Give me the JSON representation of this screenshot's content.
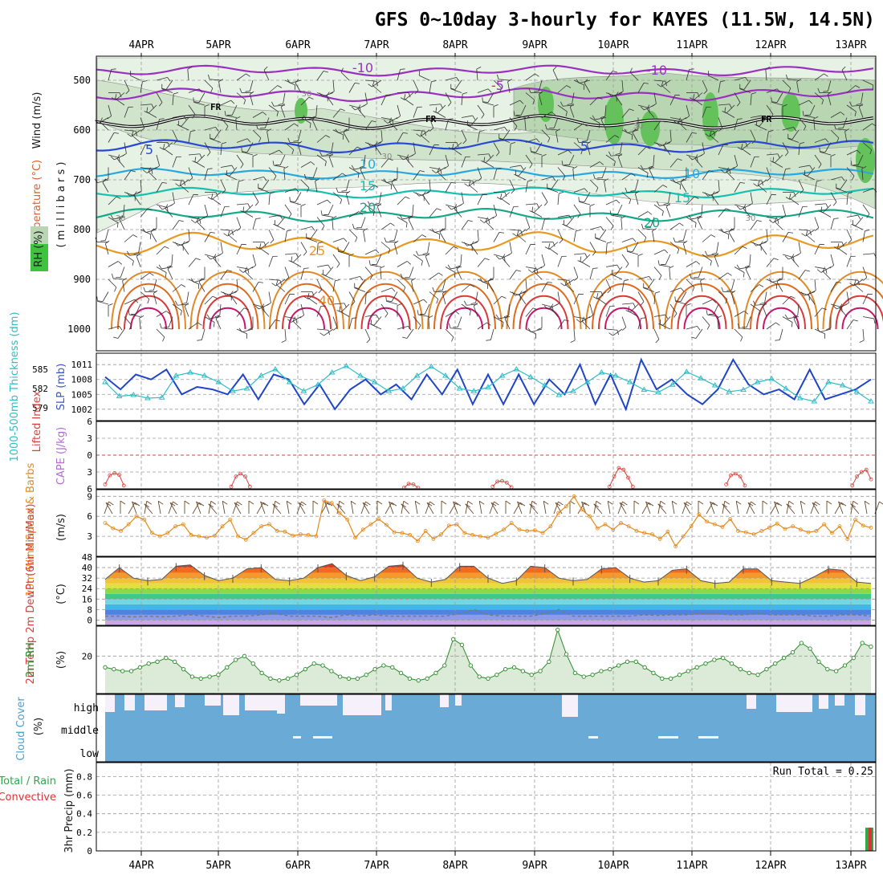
{
  "title": "GFS 0~10day 3-hourly for KAYES (11.5W, 14.5N)",
  "colors": {
    "grid": "#9a9a9a",
    "rh_light": "#e6f2e3",
    "rh_mid": "#b9d6b2",
    "rh_green": "#63c35a",
    "cloud": "#6aaad6",
    "cloud_gap": "#f5f0fa",
    "slp": "#1f44c8",
    "thickness": "#2fbcc7",
    "lifted_index": "#d8423c",
    "wind_speed": "#e58a19",
    "barbs": "#6b4a2a",
    "rh2m_line": "#2a8b2a",
    "rh2m_fill": "#dcebd8",
    "dewpt": "#7a7a7a",
    "precip_total": "#2ea84a",
    "precip_conv": "#e23030",
    "temp_bands": [
      "#c9a6e6",
      "#8e9bec",
      "#4e83e0",
      "#41b7e8",
      "#6fd8e0",
      "#40c88a",
      "#8cd84a",
      "#e0e040",
      "#f2c238",
      "#f59a2a",
      "#f06a20",
      "#de3b17",
      "#9a4a30",
      "#6b3a2a"
    ]
  },
  "x_axis": {
    "ticks": [
      "4APR",
      "5APR",
      "6APR",
      "7APR",
      "8APR",
      "9APR",
      "10APR",
      "11APR",
      "12APR",
      "13APR"
    ]
  },
  "panels": {
    "upper_air": {
      "ylabel_rh": "RH (%)",
      "ylabel_temp": "Temperature (°C)",
      "ylabel_wind": "Wind (m/s)",
      "ylabel_units": "( m i l l i b a r s )",
      "y_ticks": [
        "500",
        "600",
        "700",
        "800",
        "900",
        "1000"
      ],
      "fr_label": "FR",
      "contour_labels": [
        "-10",
        "-10",
        "-5",
        "-5",
        "-5",
        "-5",
        "5",
        "5",
        "10",
        "10",
        "15",
        "15",
        "20",
        "20",
        "25",
        "40",
        "30",
        "30",
        "30",
        "30",
        "30"
      ]
    },
    "slp_thickness": {
      "ylabel_left": "1000-500mb Thickness (dm)",
      "ylabel_right": "SLP (mb)",
      "left_ticks": [
        "585",
        "582",
        "579"
      ],
      "right_ticks": [
        "1011",
        "1008",
        "1005",
        "1002"
      ]
    },
    "stability": {
      "ylabel_li": "Lifted Index",
      "ylabel_cape": "CAPE (J/kg)",
      "ticks": [
        "6",
        "3",
        "0",
        "3",
        "6"
      ]
    },
    "wind10m": {
      "ylabel": "10m Wind Speed & Barbs",
      "ylabel_units": "(m/s)",
      "ticks": [
        "9",
        "6",
        "3"
      ]
    },
    "temp2m": {
      "ylabel": "2m Temp 2m DewPt (6hr Min/Max)",
      "ylabel_units": "(°C)",
      "ticks": [
        "48",
        "40",
        "32",
        "24",
        "16",
        "8",
        "0"
      ]
    },
    "rh2m": {
      "ylabel": "2m RH",
      "ylabel_units": "(%)",
      "ticks": [
        "20"
      ]
    },
    "cloud": {
      "ylabel": "Cloud Cover",
      "ylabel_units": "(%)",
      "levels": [
        "high",
        "middle",
        "low"
      ]
    },
    "precip": {
      "ylabel_total": "Total / Rain",
      "ylabel_conv": "Convective",
      "ylabel": "3hr Precip (mm)",
      "ticks": [
        "0.8",
        "0.6",
        "0.4",
        "0.2",
        "0"
      ],
      "top_tick": "0.8",
      "run_total": "Run Total = 0.25"
    }
  },
  "chart_data": [
    {
      "type": "line",
      "title": "SLP (mb)",
      "x_start": "3APR 12Z",
      "x_step_hours": 12,
      "series": [
        {
          "name": "SLP (mb)",
          "values": [
            1008.5,
            1006,
            1009,
            1008,
            1010,
            1005,
            1006.5,
            1006,
            1005,
            1009,
            1004,
            1009,
            1008,
            1003,
            1007,
            1002,
            1006,
            1008,
            1005,
            1007,
            1004,
            1009,
            1005,
            1010,
            1003,
            1009,
            1003,
            1009,
            1003,
            1008,
            1005,
            1011,
            1003,
            1009,
            1002,
            1012,
            1006,
            1008,
            1005,
            1003,
            1006,
            1012,
            1007,
            1005,
            1006,
            1004,
            1010,
            1004,
            1005,
            1006,
            1008
          ]
        }
      ],
      "ylim": [
        1001,
        1012
      ]
    },
    {
      "type": "line",
      "title": "1000-500mb Thickness (dm)",
      "series": [
        {
          "name": "1000-500mb Thickness (dm)",
          "values": [
            583,
            580.8,
            581,
            580.5,
            580.6,
            584,
            584.5,
            584,
            583,
            581.6,
            582,
            584,
            585,
            583,
            581.6,
            582.6,
            584.5,
            585.5,
            584,
            583,
            581.6,
            582,
            584,
            585.4,
            584,
            582,
            581.6,
            582.2,
            584,
            585,
            583.8,
            582.5,
            581,
            581.6,
            583,
            584.5,
            584,
            583,
            581.8,
            581.4,
            582.6,
            584.6,
            583.6,
            582.5,
            581.5,
            581.8,
            583,
            583.5,
            582,
            580.5,
            580,
            583,
            582.5,
            581.5,
            580
          ]
        }
      ],
      "ylim": [
        578,
        586.5
      ]
    },
    {
      "type": "line",
      "title": "Lifted Index",
      "series": [
        {
          "name": "Lifted Index",
          "values": [
            5.2,
            3.6,
            3.2,
            3.5,
            5.4,
            null,
            null,
            null,
            null,
            null,
            null,
            null,
            null,
            null,
            null,
            null,
            null,
            null,
            null,
            null,
            null,
            null,
            null,
            null,
            null,
            null,
            null,
            5.6,
            3.8,
            3.3,
            3.8,
            5.6,
            null,
            null,
            null,
            null,
            null,
            null,
            null,
            null,
            null,
            null,
            null,
            null,
            null,
            null,
            null,
            null,
            null,
            null,
            null,
            null,
            null,
            null,
            null,
            null,
            null,
            null,
            null,
            null,
            null,
            null,
            null,
            null,
            5.8,
            5.1,
            5.2,
            5.8,
            null,
            null,
            null,
            null,
            null,
            null,
            null,
            null,
            null,
            null,
            null,
            null,
            null,
            null,
            null,
            5.6,
            4.7,
            4.6,
            4.9,
            5.7,
            null,
            null,
            null,
            null,
            null,
            null,
            null,
            null,
            null,
            null,
            null,
            null,
            null,
            null,
            null,
            null,
            null,
            null,
            null,
            null,
            5.6,
            3.8,
            2.3,
            2.6,
            4.0,
            5.6,
            null,
            null,
            null,
            null,
            null,
            null,
            null,
            null,
            null,
            null,
            null,
            null,
            null,
            null,
            null,
            null,
            null,
            null,
            null,
            5.2,
            3.6,
            3.3,
            3.8,
            5.4,
            null,
            null,
            null,
            null,
            null,
            null,
            null,
            null,
            null,
            null,
            null,
            null,
            null,
            null,
            null,
            null,
            null,
            null,
            null,
            null,
            null,
            null,
            5.4,
            3.8,
            3.0,
            2.6,
            4.3
          ]
        }
      ],
      "ylim": [
        -6,
        6
      ]
    },
    {
      "type": "line",
      "title": "10m Wind Speed (m/s)",
      "series": [
        {
          "name": "10m Wind Speed",
          "values": [
            5,
            4.2,
            3.8,
            4.8,
            6,
            5.5,
            3.5,
            3,
            3.5,
            4.5,
            4.8,
            3.2,
            3,
            2.8,
            3.1,
            4.5,
            5.5,
            3,
            2.5,
            3.5,
            4.5,
            4.8,
            3.8,
            3.7,
            3.1,
            3.3,
            3.2,
            3,
            8.4,
            8,
            6.5,
            5.5,
            2.8,
            4,
            4.8,
            5.6,
            4.7,
            3.6,
            3.5,
            3.2,
            2.3,
            3.8,
            2.6,
            3.3,
            4.6,
            4.8,
            3.5,
            3.2,
            3,
            2.8,
            3.4,
            4,
            5,
            4,
            3.8,
            3.9,
            3.5,
            4.5,
            6.5,
            7.5,
            9,
            7,
            6,
            4.2,
            4.8,
            4,
            5,
            4.5,
            3.8,
            3.5,
            3.3,
            2.6,
            3.7,
            1.5,
            3,
            4.5,
            6.3,
            5.2,
            4.8,
            4.4,
            5.6,
            3.8,
            3.6,
            3.3,
            3.8,
            4.3,
            4.9,
            4.1,
            4.5,
            4,
            3.6,
            3.8,
            4.8,
            3.5,
            4.5,
            2.6,
            5.5,
            4.6,
            4.3
          ]
        }
      ],
      "ylim": [
        0,
        10
      ]
    },
    {
      "type": "area",
      "title": "2m Temp (°C)",
      "series": [
        {
          "name": "2m Temp",
          "values": [
            31,
            40,
            32,
            30,
            31,
            41,
            42,
            34,
            30,
            32,
            39,
            40,
            31,
            30,
            32,
            40,
            43,
            34,
            30,
            33,
            41,
            42,
            32,
            29,
            31,
            41,
            41,
            32,
            28,
            30,
            41,
            40,
            32,
            30,
            31,
            39,
            40,
            32,
            29,
            30,
            38,
            39,
            30,
            28,
            29,
            39,
            39,
            30,
            29,
            28,
            33,
            39,
            38,
            29,
            28
          ]
        },
        {
          "name": "2m DewPt",
          "values": [
            3,
            3,
            2.5,
            3,
            2.5,
            3,
            4,
            3,
            2,
            3,
            3,
            4,
            5,
            3,
            3,
            3,
            2,
            4,
            3,
            4,
            3,
            3,
            3,
            3,
            3,
            5,
            8,
            4,
            3,
            3,
            3,
            5,
            8,
            3,
            3,
            3,
            3,
            3,
            4,
            3.5,
            4,
            4,
            5,
            5,
            4,
            4,
            5,
            4,
            4,
            4,
            3,
            3,
            4,
            4,
            3
          ]
        }
      ],
      "ylim": [
        -4,
        48
      ]
    },
    {
      "type": "area",
      "title": "2m RH (%)",
      "series": [
        {
          "name": "2m RH",
          "values": [
            14,
            13,
            12,
            12,
            14,
            16,
            17,
            19,
            17,
            13,
            9,
            8,
            9,
            10,
            14,
            18,
            20,
            16,
            11,
            8,
            7,
            8,
            10,
            13,
            16,
            15,
            12,
            9,
            8,
            8,
            10,
            13,
            15,
            14,
            11,
            8,
            7,
            8,
            11,
            15,
            29,
            26,
            15,
            9,
            8,
            10,
            13,
            14,
            12,
            10,
            12,
            17,
            34,
            21,
            11,
            9,
            10,
            12,
            13,
            15,
            17,
            17,
            14,
            11,
            8,
            8,
            10,
            12,
            14,
            16,
            18,
            19,
            16,
            13,
            11,
            10,
            13,
            16,
            19,
            22,
            27,
            24,
            17,
            13,
            12,
            15,
            19,
            27,
            25
          ]
        }
      ],
      "ylim": [
        0,
        36
      ]
    },
    {
      "type": "bar",
      "title": "3hr Precip (mm)",
      "series": [
        {
          "name": "Total / Rain",
          "values": [
            0.25
          ]
        },
        {
          "name": "Convective",
          "values": [
            0.25
          ]
        }
      ],
      "categories": [
        "13APR"
      ],
      "ylim": [
        0,
        0.95
      ]
    }
  ]
}
